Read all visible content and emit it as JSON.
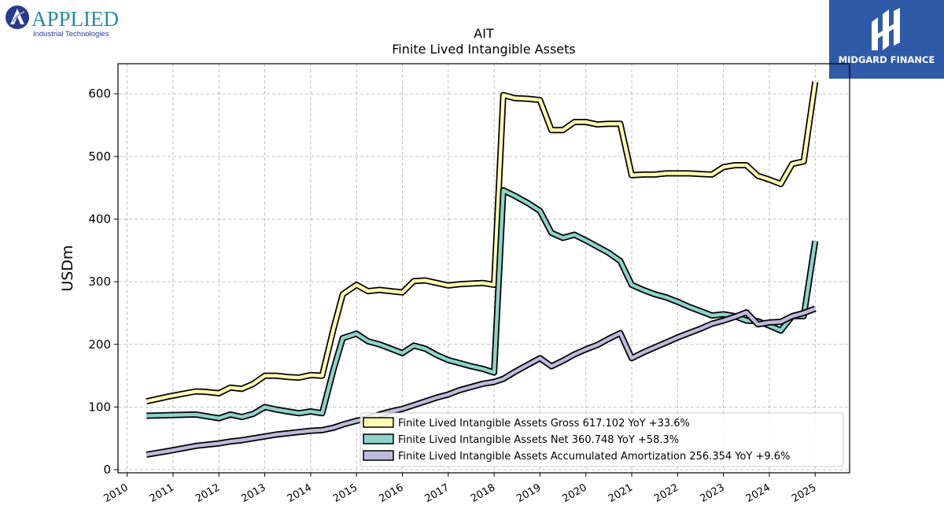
{
  "logos": {
    "left_main": "APPLIED",
    "left_sub": "Industrial Technologies",
    "right_text": "MIDGARD FINANCE"
  },
  "colors": {
    "gross": "#ffffb3",
    "net": "#8dd3c7",
    "amort": "#bebada",
    "outline": "#000000",
    "grid": "#b0b0b0",
    "right_logo_bg": "#2f5aa8"
  },
  "chart_data": {
    "type": "line",
    "title": "AIT",
    "subtitle": "Finite Lived Intangible Assets",
    "ylabel": "USDm",
    "xlabel": "",
    "xlim": [
      2009.8,
      2025.75
    ],
    "ylim": [
      -5,
      648
    ],
    "yticks": [
      0,
      100,
      200,
      300,
      400,
      500,
      600
    ],
    "xticks": [
      2010,
      2011,
      2012,
      2013,
      2014,
      2015,
      2016,
      2017,
      2018,
      2019,
      2020,
      2021,
      2022,
      2023,
      2024,
      2025
    ],
    "grid": true,
    "legend_position": "lower-right",
    "series": [
      {
        "name": "Finite Lived Intangible Assets Gross",
        "legend": "Finite Lived Intangible Assets Gross  617.102 YoY +33.6%",
        "color_key": "gross",
        "points": [
          [
            2010.42,
            109
          ],
          [
            2010.92,
            117
          ],
          [
            2011.5,
            125
          ],
          [
            2011.75,
            124
          ],
          [
            2012.0,
            122
          ],
          [
            2012.25,
            131
          ],
          [
            2012.5,
            129
          ],
          [
            2012.75,
            137
          ],
          [
            2013.0,
            150
          ],
          [
            2013.25,
            150
          ],
          [
            2013.5,
            148
          ],
          [
            2013.75,
            147
          ],
          [
            2014.0,
            151
          ],
          [
            2014.25,
            150
          ],
          [
            2014.5,
            225
          ],
          [
            2014.7,
            280
          ],
          [
            2015.0,
            295
          ],
          [
            2015.25,
            285
          ],
          [
            2015.5,
            287
          ],
          [
            2015.75,
            285
          ],
          [
            2016.0,
            283
          ],
          [
            2016.25,
            301
          ],
          [
            2016.5,
            302
          ],
          [
            2016.75,
            298
          ],
          [
            2017.0,
            294
          ],
          [
            2017.25,
            296
          ],
          [
            2017.5,
            297
          ],
          [
            2017.75,
            298
          ],
          [
            2018.0,
            295
          ],
          [
            2018.2,
            598
          ],
          [
            2018.45,
            593
          ],
          [
            2018.75,
            592
          ],
          [
            2019.0,
            590
          ],
          [
            2019.25,
            542
          ],
          [
            2019.5,
            542
          ],
          [
            2019.75,
            555
          ],
          [
            2020.0,
            555
          ],
          [
            2020.25,
            551
          ],
          [
            2020.5,
            552
          ],
          [
            2020.75,
            552
          ],
          [
            2021.0,
            470
          ],
          [
            2021.25,
            471
          ],
          [
            2021.5,
            471
          ],
          [
            2021.75,
            473
          ],
          [
            2022.0,
            473
          ],
          [
            2022.25,
            473
          ],
          [
            2022.5,
            472
          ],
          [
            2022.75,
            471
          ],
          [
            2023.0,
            483
          ],
          [
            2023.25,
            486
          ],
          [
            2023.5,
            486
          ],
          [
            2023.75,
            469
          ],
          [
            2024.0,
            463
          ],
          [
            2024.25,
            456
          ],
          [
            2024.5,
            488
          ],
          [
            2024.75,
            492
          ],
          [
            2025.0,
            619
          ]
        ]
      },
      {
        "name": "Finite Lived Intangible Assets Net",
        "legend": "Finite Lived Intangible Assets Net  360.748 YoY +58.3%",
        "color_key": "net",
        "points": [
          [
            2010.42,
            86
          ],
          [
            2010.92,
            87
          ],
          [
            2011.5,
            88
          ],
          [
            2011.75,
            85
          ],
          [
            2012.0,
            82
          ],
          [
            2012.25,
            88
          ],
          [
            2012.5,
            84
          ],
          [
            2012.75,
            89
          ],
          [
            2013.0,
            100
          ],
          [
            2013.25,
            96
          ],
          [
            2013.5,
            93
          ],
          [
            2013.75,
            90
          ],
          [
            2014.0,
            93
          ],
          [
            2014.25,
            90
          ],
          [
            2014.5,
            160
          ],
          [
            2014.7,
            210
          ],
          [
            2015.0,
            217
          ],
          [
            2015.25,
            205
          ],
          [
            2015.5,
            200
          ],
          [
            2015.75,
            193
          ],
          [
            2016.0,
            186
          ],
          [
            2016.25,
            198
          ],
          [
            2016.5,
            193
          ],
          [
            2016.75,
            183
          ],
          [
            2017.0,
            175
          ],
          [
            2017.25,
            170
          ],
          [
            2017.5,
            165
          ],
          [
            2017.75,
            161
          ],
          [
            2018.0,
            155
          ],
          [
            2018.2,
            446
          ],
          [
            2018.45,
            437
          ],
          [
            2018.75,
            425
          ],
          [
            2019.0,
            413
          ],
          [
            2019.25,
            378
          ],
          [
            2019.5,
            370
          ],
          [
            2019.75,
            375
          ],
          [
            2020.0,
            366
          ],
          [
            2020.25,
            356
          ],
          [
            2020.5,
            346
          ],
          [
            2020.75,
            333
          ],
          [
            2021.0,
            295
          ],
          [
            2021.25,
            287
          ],
          [
            2021.5,
            280
          ],
          [
            2021.75,
            275
          ],
          [
            2022.0,
            268
          ],
          [
            2022.25,
            260
          ],
          [
            2022.5,
            253
          ],
          [
            2022.75,
            246
          ],
          [
            2023.0,
            248
          ],
          [
            2023.25,
            245
          ],
          [
            2023.5,
            238
          ],
          [
            2023.75,
            237
          ],
          [
            2024.0,
            230
          ],
          [
            2024.25,
            222
          ],
          [
            2024.5,
            245
          ],
          [
            2024.75,
            245
          ],
          [
            2025.0,
            365
          ]
        ]
      },
      {
        "name": "Finite Lived Intangible Assets Accumulated Amortization",
        "legend": "Finite Lived Intangible Assets Accumulated Amortization  256.354 YoY +9.6%",
        "color_key": "amort",
        "points": [
          [
            2010.42,
            24
          ],
          [
            2010.92,
            30
          ],
          [
            2011.5,
            38
          ],
          [
            2011.75,
            40
          ],
          [
            2012.0,
            42
          ],
          [
            2012.25,
            45
          ],
          [
            2012.5,
            47
          ],
          [
            2012.75,
            50
          ],
          [
            2013.0,
            53
          ],
          [
            2013.25,
            56
          ],
          [
            2013.5,
            58
          ],
          [
            2013.75,
            60
          ],
          [
            2014.0,
            62
          ],
          [
            2014.25,
            63
          ],
          [
            2014.5,
            67
          ],
          [
            2014.7,
            72
          ],
          [
            2015.0,
            78
          ],
          [
            2015.25,
            82
          ],
          [
            2015.5,
            88
          ],
          [
            2015.75,
            93
          ],
          [
            2016.0,
            97
          ],
          [
            2016.25,
            103
          ],
          [
            2016.5,
            109
          ],
          [
            2016.75,
            115
          ],
          [
            2017.0,
            120
          ],
          [
            2017.25,
            127
          ],
          [
            2017.5,
            132
          ],
          [
            2017.75,
            137
          ],
          [
            2018.0,
            140
          ],
          [
            2018.2,
            145
          ],
          [
            2018.45,
            156
          ],
          [
            2018.75,
            168
          ],
          [
            2019.0,
            178
          ],
          [
            2019.25,
            165
          ],
          [
            2019.5,
            174
          ],
          [
            2019.75,
            184
          ],
          [
            2020.0,
            192
          ],
          [
            2020.25,
            199
          ],
          [
            2020.5,
            209
          ],
          [
            2020.75,
            218
          ],
          [
            2021.0,
            178
          ],
          [
            2021.25,
            187
          ],
          [
            2021.5,
            195
          ],
          [
            2021.75,
            203
          ],
          [
            2022.0,
            211
          ],
          [
            2022.25,
            218
          ],
          [
            2022.5,
            225
          ],
          [
            2022.75,
            233
          ],
          [
            2023.0,
            238
          ],
          [
            2023.25,
            244
          ],
          [
            2023.5,
            251
          ],
          [
            2023.75,
            232
          ],
          [
            2024.0,
            235
          ],
          [
            2024.25,
            236
          ],
          [
            2024.5,
            245
          ],
          [
            2024.75,
            250
          ],
          [
            2025.0,
            257
          ]
        ]
      }
    ]
  }
}
